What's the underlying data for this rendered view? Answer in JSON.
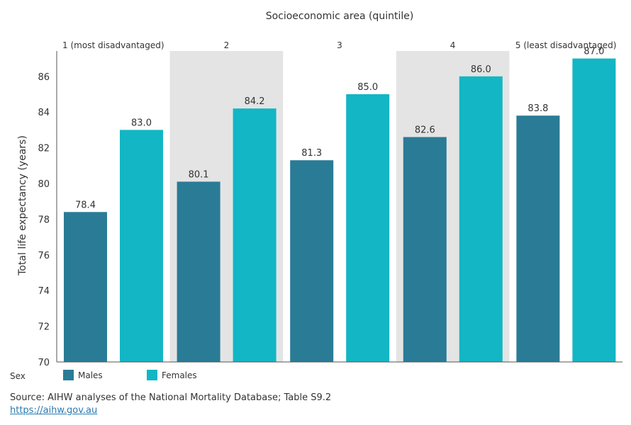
{
  "chart_data": {
    "type": "bar",
    "title": "Socioeconomic area (quintile)",
    "ylabel": "Total life expectancy (years)",
    "xlabel": "",
    "ylim": [
      70,
      87.5
    ],
    "yticks": [
      70,
      72,
      74,
      76,
      78,
      80,
      82,
      84,
      86
    ],
    "categories": [
      "1 (most disadvantaged)",
      "2",
      "3",
      "4",
      "5 (least disadvantaged)"
    ],
    "shaded_groups": [
      false,
      true,
      false,
      true,
      false
    ],
    "series": [
      {
        "name": "Males",
        "color": "#2a7b96",
        "values": [
          78.4,
          80.1,
          81.3,
          82.6,
          83.8
        ],
        "labels": [
          "78.4",
          "80.1",
          "81.3",
          "82.6",
          "83.8"
        ]
      },
      {
        "name": "Females",
        "color": "#13b6c4",
        "values": [
          83.0,
          84.2,
          85.0,
          86.0,
          87.0
        ],
        "labels": [
          "83.0",
          "84.2",
          "85.0",
          "86.0",
          "87.0"
        ]
      }
    ],
    "legend": {
      "title": "Sex",
      "placement": "bottom-left"
    },
    "grid": false
  },
  "source": {
    "label": "Source",
    "text": ": AIHW analyses of the National Mortality Database; Table S9.2",
    "url": "https://aihw.gov.au"
  },
  "colors": {
    "shade": "#e4e4e4",
    "axis": "#555555",
    "text": "#333333"
  }
}
